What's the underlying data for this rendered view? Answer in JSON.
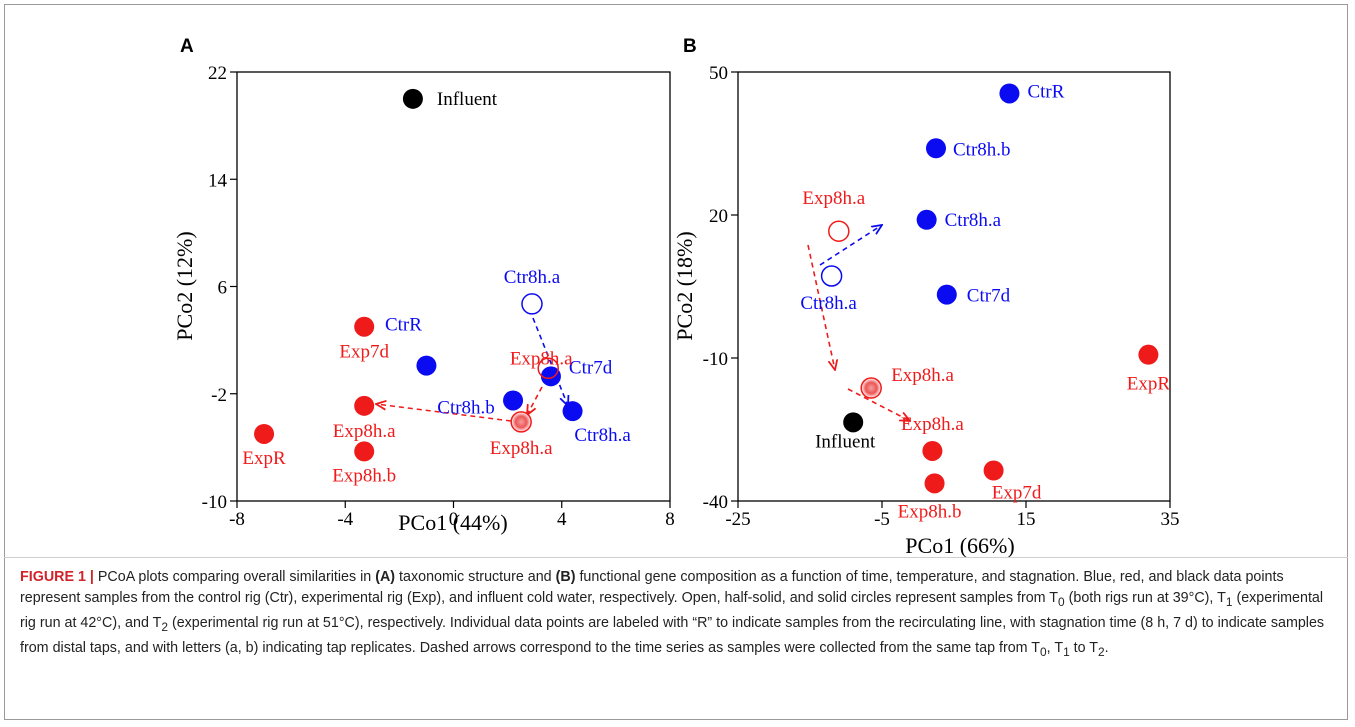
{
  "colors": {
    "control": "#0b0bf2",
    "experimental": "#ef1b1b",
    "influent": "#000000",
    "caption_label": "#d2232a"
  },
  "chart_data": [
    {
      "panel": "A",
      "type": "scatter",
      "xlabel": "PCo1 (44%)",
      "ylabel": "PCo2 (12%)",
      "xlim": [
        -8,
        8
      ],
      "ylim": [
        -10,
        22
      ],
      "xticks": [
        -8,
        -4,
        0,
        4,
        8
      ],
      "yticks": [
        -10,
        -2,
        6,
        14,
        22
      ],
      "points": [
        {
          "label": "Influent",
          "x": -1.5,
          "y": 20.0,
          "group": "influent",
          "fill": "solid"
        },
        {
          "label": "CtrR",
          "x": -1.0,
          "y": 0.1,
          "group": "control",
          "fill": "solid"
        },
        {
          "label": "Ctr8h.b",
          "x": 2.2,
          "y": -2.5,
          "group": "control",
          "fill": "solid"
        },
        {
          "label": "Ctr7d",
          "x": 3.6,
          "y": -0.7,
          "group": "control",
          "fill": "solid"
        },
        {
          "label": "Ctr8h.a",
          "x": 4.4,
          "y": -3.3,
          "group": "control",
          "fill": "solid"
        },
        {
          "label": "Ctr8h.a",
          "x": 2.9,
          "y": 4.7,
          "group": "control",
          "fill": "open"
        },
        {
          "label": "Exp7d",
          "x": -3.3,
          "y": 3.0,
          "group": "experimental",
          "fill": "solid"
        },
        {
          "label": "Exp8h.a",
          "x": -3.3,
          "y": -2.9,
          "group": "experimental",
          "fill": "solid"
        },
        {
          "label": "Exp8h.b",
          "x": -3.3,
          "y": -6.3,
          "group": "experimental",
          "fill": "solid"
        },
        {
          "label": "ExpR",
          "x": -7.0,
          "y": -5.0,
          "group": "experimental",
          "fill": "solid"
        },
        {
          "label": "Exp8h.a",
          "x": 2.5,
          "y": -4.1,
          "group": "experimental",
          "fill": "half"
        },
        {
          "label": "Exp8h.a",
          "x": 3.5,
          "y": -0.1,
          "group": "experimental",
          "fill": "open"
        }
      ]
    },
    {
      "panel": "B",
      "type": "scatter",
      "xlabel": "PCo1 (66%)",
      "ylabel": "PCo2 (18%)",
      "xlim": [
        -25,
        35
      ],
      "ylim": [
        -40,
        50
      ],
      "xticks": [
        -25,
        -5,
        15,
        35
      ],
      "yticks": [
        -40,
        -10,
        20,
        50
      ],
      "points": [
        {
          "label": "CtrR",
          "x": 12.7,
          "y": 45.5,
          "group": "control",
          "fill": "solid"
        },
        {
          "label": "Ctr8h.b",
          "x": 2.5,
          "y": 34.0,
          "group": "control",
          "fill": "solid"
        },
        {
          "label": "Ctr8h.a",
          "x": 1.2,
          "y": 19.0,
          "group": "control",
          "fill": "solid"
        },
        {
          "label": "Ctr7d",
          "x": 4.0,
          "y": 3.3,
          "group": "control",
          "fill": "solid"
        },
        {
          "label": "Ctr8h.a",
          "x": -12.0,
          "y": 7.2,
          "group": "control",
          "fill": "open"
        },
        {
          "label": "Exp8h.a",
          "x": -11.0,
          "y": 16.6,
          "group": "experimental",
          "fill": "open"
        },
        {
          "label": "Exp8h.a",
          "x": -6.5,
          "y": -16.3,
          "group": "experimental",
          "fill": "half"
        },
        {
          "label": "Influent",
          "x": -9.0,
          "y": -23.5,
          "group": "influent",
          "fill": "solid"
        },
        {
          "label": "Exp8h.a",
          "x": 2.0,
          "y": -29.5,
          "group": "experimental",
          "fill": "solid"
        },
        {
          "label": "Exp8h.b",
          "x": 2.3,
          "y": -36.3,
          "group": "experimental",
          "fill": "solid"
        },
        {
          "label": "Exp7d",
          "x": 10.5,
          "y": -33.6,
          "group": "experimental",
          "fill": "solid"
        },
        {
          "label": "ExpR",
          "x": 32.0,
          "y": -9.3,
          "group": "experimental",
          "fill": "solid"
        }
      ]
    }
  ],
  "caption": {
    "figure_label": "FIGURE 1 |",
    "t1": " PCoA plots comparing overall similarities in ",
    "t2": "(A)",
    "t3": " taxonomic structure and ",
    "t4": "(B)",
    "t5": " functional gene composition as a function of time, temperature, and stagnation. Blue, red, and black data points represent samples from the control rig (Ctr), experimental rig (Exp), and influent cold water, respectively. Open, half-solid, and solid circles represent samples from T",
    "s1": "0",
    "t6": " (both rigs run at 39°C), T",
    "s2": "1",
    "t7": " (experimental rig run at 42°C), and T",
    "s3": "2",
    "t8": " (experimental rig run at 51°C), respectively. Individual data points are labeled with “R” to indicate samples from the recirculating line, with stagnation time (8 h, 7 d) to indicate samples from distal taps, and with letters (a, b) indicating tap replicates. Dashed arrows correspond to the time series as samples were collected from the same tap from T",
    "s4": "0",
    "t9": ", T",
    "s5": "1",
    "t10": " to T",
    "s6": "2",
    "t11": "."
  }
}
